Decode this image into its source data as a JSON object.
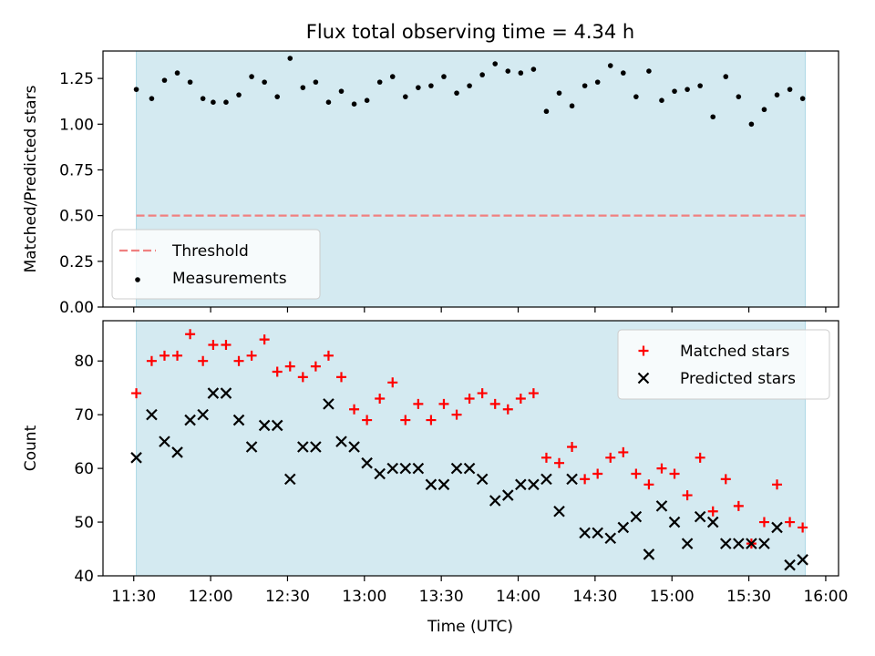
{
  "chart_data": {
    "type": "scatter",
    "title": "Flux total observing time = 4.34 h",
    "xlabel": "Time (UTC)",
    "x_tick_labels": [
      "11:30",
      "12:00",
      "12:30",
      "13:00",
      "13:30",
      "14:00",
      "14:30",
      "15:00",
      "15:30",
      "16:00"
    ],
    "x_tick_values": [
      "11:30",
      "12:00",
      "12:30",
      "13:00",
      "13:30",
      "14:00",
      "14:30",
      "15:00",
      "15:30",
      "16:00"
    ],
    "xlim": [
      "11:18",
      "16:05"
    ],
    "observing_window": [
      "11:31",
      "15:52"
    ],
    "shading_color": "#d4eaf1",
    "panels": [
      {
        "ylabel": "Matched/Predicted stars",
        "ylim": [
          0,
          1.4
        ],
        "y_ticks": [
          "0.00",
          "0.25",
          "0.50",
          "0.75",
          "1.00",
          "1.25"
        ],
        "threshold": {
          "name": "Threshold",
          "value": 0.5,
          "color": "#f08080"
        },
        "legend_position": "lower-left",
        "series": [
          {
            "name": "Measurements",
            "marker": "dot",
            "color": "#000000",
            "points": [
              [
                "11:31",
                1.19
              ],
              [
                "11:37",
                1.14
              ],
              [
                "11:42",
                1.24
              ],
              [
                "11:47",
                1.28
              ],
              [
                "11:52",
                1.23
              ],
              [
                "11:57",
                1.14
              ],
              [
                "12:01",
                1.12
              ],
              [
                "12:06",
                1.12
              ],
              [
                "12:11",
                1.16
              ],
              [
                "12:16",
                1.26
              ],
              [
                "12:21",
                1.23
              ],
              [
                "12:26",
                1.15
              ],
              [
                "12:31",
                1.36
              ],
              [
                "12:36",
                1.2
              ],
              [
                "12:41",
                1.23
              ],
              [
                "12:46",
                1.12
              ],
              [
                "12:51",
                1.18
              ],
              [
                "12:56",
                1.11
              ],
              [
                "13:01",
                1.13
              ],
              [
                "13:06",
                1.23
              ],
              [
                "13:11",
                1.26
              ],
              [
                "13:16",
                1.15
              ],
              [
                "13:21",
                1.2
              ],
              [
                "13:26",
                1.21
              ],
              [
                "13:31",
                1.26
              ],
              [
                "13:36",
                1.17
              ],
              [
                "13:41",
                1.21
              ],
              [
                "13:46",
                1.27
              ],
              [
                "13:51",
                1.33
              ],
              [
                "13:56",
                1.29
              ],
              [
                "14:01",
                1.28
              ],
              [
                "14:06",
                1.3
              ],
              [
                "14:11",
                1.07
              ],
              [
                "14:16",
                1.17
              ],
              [
                "14:21",
                1.1
              ],
              [
                "14:26",
                1.21
              ],
              [
                "14:31",
                1.23
              ],
              [
                "14:36",
                1.32
              ],
              [
                "14:41",
                1.28
              ],
              [
                "14:46",
                1.15
              ],
              [
                "14:51",
                1.29
              ],
              [
                "14:56",
                1.13
              ],
              [
                "15:01",
                1.18
              ],
              [
                "15:06",
                1.19
              ],
              [
                "15:11",
                1.21
              ],
              [
                "15:16",
                1.04
              ],
              [
                "15:21",
                1.26
              ],
              [
                "15:26",
                1.15
              ],
              [
                "15:31",
                1.0
              ],
              [
                "15:36",
                1.08
              ],
              [
                "15:41",
                1.16
              ],
              [
                "15:46",
                1.19
              ],
              [
                "15:51",
                1.14
              ]
            ]
          }
        ]
      },
      {
        "ylabel": "Count",
        "ylim": [
          40,
          87.5
        ],
        "y_ticks": [
          "40",
          "50",
          "60",
          "70",
          "80"
        ],
        "legend_position": "top-right",
        "series": [
          {
            "name": "Matched stars",
            "marker": "plus",
            "color": "#ff0000",
            "points": [
              [
                "11:31",
                74
              ],
              [
                "11:37",
                80
              ],
              [
                "11:42",
                81
              ],
              [
                "11:47",
                81
              ],
              [
                "11:52",
                85
              ],
              [
                "11:57",
                80
              ],
              [
                "12:01",
                83
              ],
              [
                "12:06",
                83
              ],
              [
                "12:11",
                80
              ],
              [
                "12:16",
                81
              ],
              [
                "12:21",
                84
              ],
              [
                "12:26",
                78
              ],
              [
                "12:31",
                79
              ],
              [
                "12:36",
                77
              ],
              [
                "12:41",
                79
              ],
              [
                "12:46",
                81
              ],
              [
                "12:51",
                77
              ],
              [
                "12:56",
                71
              ],
              [
                "13:01",
                69
              ],
              [
                "13:06",
                73
              ],
              [
                "13:11",
                76
              ],
              [
                "13:16",
                69
              ],
              [
                "13:21",
                72
              ],
              [
                "13:26",
                69
              ],
              [
                "13:31",
                72
              ],
              [
                "13:36",
                70
              ],
              [
                "13:41",
                73
              ],
              [
                "13:46",
                74
              ],
              [
                "13:51",
                72
              ],
              [
                "13:56",
                71
              ],
              [
                "14:01",
                73
              ],
              [
                "14:06",
                74
              ],
              [
                "14:11",
                62
              ],
              [
                "14:16",
                61
              ],
              [
                "14:21",
                64
              ],
              [
                "14:26",
                58
              ],
              [
                "14:31",
                59
              ],
              [
                "14:36",
                62
              ],
              [
                "14:41",
                63
              ],
              [
                "14:46",
                59
              ],
              [
                "14:51",
                57
              ],
              [
                "14:56",
                60
              ],
              [
                "15:01",
                59
              ],
              [
                "15:06",
                55
              ],
              [
                "15:11",
                62
              ],
              [
                "15:16",
                52
              ],
              [
                "15:21",
                58
              ],
              [
                "15:26",
                53
              ],
              [
                "15:31",
                46
              ],
              [
                "15:36",
                50
              ],
              [
                "15:41",
                57
              ],
              [
                "15:46",
                50
              ],
              [
                "15:51",
                49
              ]
            ]
          },
          {
            "name": "Predicted stars",
            "marker": "x",
            "color": "#000000",
            "points": [
              [
                "11:31",
                62
              ],
              [
                "11:37",
                70
              ],
              [
                "11:42",
                65
              ],
              [
                "11:47",
                63
              ],
              [
                "11:52",
                69
              ],
              [
                "11:57",
                70
              ],
              [
                "12:01",
                74
              ],
              [
                "12:06",
                74
              ],
              [
                "12:11",
                69
              ],
              [
                "12:16",
                64
              ],
              [
                "12:21",
                68
              ],
              [
                "12:26",
                68
              ],
              [
                "12:31",
                58
              ],
              [
                "12:36",
                64
              ],
              [
                "12:41",
                64
              ],
              [
                "12:46",
                72
              ],
              [
                "12:51",
                65
              ],
              [
                "12:56",
                64
              ],
              [
                "13:01",
                61
              ],
              [
                "13:06",
                59
              ],
              [
                "13:11",
                60
              ],
              [
                "13:16",
                60
              ],
              [
                "13:21",
                60
              ],
              [
                "13:26",
                57
              ],
              [
                "13:31",
                57
              ],
              [
                "13:36",
                60
              ],
              [
                "13:41",
                60
              ],
              [
                "13:46",
                58
              ],
              [
                "13:51",
                54
              ],
              [
                "13:56",
                55
              ],
              [
                "14:01",
                57
              ],
              [
                "14:06",
                57
              ],
              [
                "14:11",
                58
              ],
              [
                "14:16",
                52
              ],
              [
                "14:21",
                58
              ],
              [
                "14:26",
                48
              ],
              [
                "14:31",
                48
              ],
              [
                "14:36",
                47
              ],
              [
                "14:41",
                49
              ],
              [
                "14:46",
                51
              ],
              [
                "14:51",
                44
              ],
              [
                "14:56",
                53
              ],
              [
                "15:01",
                50
              ],
              [
                "15:06",
                46
              ],
              [
                "15:11",
                51
              ],
              [
                "15:16",
                50
              ],
              [
                "15:21",
                46
              ],
              [
                "15:26",
                46
              ],
              [
                "15:31",
                46
              ],
              [
                "15:36",
                46
              ],
              [
                "15:41",
                49
              ],
              [
                "15:46",
                42
              ],
              [
                "15:51",
                43
              ]
            ]
          }
        ]
      }
    ]
  }
}
